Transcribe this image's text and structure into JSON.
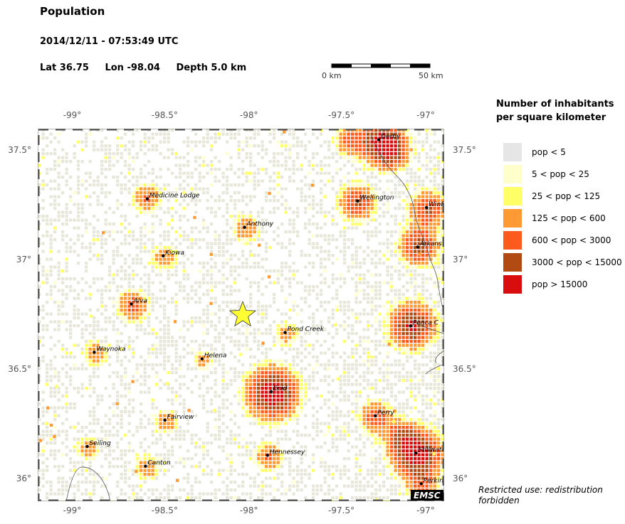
{
  "header": {
    "title": "Population",
    "datetime": "2014/12/11 - 07:53:49 UTC",
    "lat": "Lat 36.75",
    "lon": "Lon -98.04",
    "depth": "Depth  5.0 km"
  },
  "scale_bar": {
    "start_label": "0 km",
    "end_label": "50 km",
    "length_km": 50
  },
  "map": {
    "lon_range": [
      -99.2,
      -96.9
    ],
    "lat_range": [
      35.9,
      37.6
    ],
    "x_ticks": [
      {
        "lon": -99.0,
        "label": "-99°"
      },
      {
        "lon": -98.5,
        "label": "-98.5°"
      },
      {
        "lon": -98.0,
        "label": "-98°"
      },
      {
        "lon": -97.5,
        "label": "-97.5°"
      },
      {
        "lon": -97.0,
        "label": "-97°"
      }
    ],
    "y_ticks": [
      {
        "lat": 37.5,
        "label": "37.5°"
      },
      {
        "lat": 37.0,
        "label": "37°"
      },
      {
        "lat": 36.5,
        "label": "36.5°"
      },
      {
        "lat": 36.0,
        "label": "36°"
      }
    ],
    "epicenter": {
      "lat": 36.75,
      "lon": -98.04,
      "color": "#ffff33"
    },
    "cities": [
      {
        "name": "Derby",
        "lat": 37.55,
        "lon": -97.27
      },
      {
        "name": "Medicine Lodge",
        "lat": 37.28,
        "lon": -98.58
      },
      {
        "name": "Wellington",
        "lat": 37.27,
        "lon": -97.39
      },
      {
        "name": "Winf",
        "lat": 37.24,
        "lon": -97.0
      },
      {
        "name": "Anthony",
        "lat": 37.15,
        "lon": -98.03
      },
      {
        "name": "Kiowa",
        "lat": 37.02,
        "lon": -98.49
      },
      {
        "name": "Arkans",
        "lat": 37.06,
        "lon": -97.05
      },
      {
        "name": "Alva",
        "lat": 36.8,
        "lon": -98.67
      },
      {
        "name": "Pond Creek",
        "lat": 36.67,
        "lon": -97.8
      },
      {
        "name": "Ponca C",
        "lat": 36.7,
        "lon": -97.09
      },
      {
        "name": "Waynoka",
        "lat": 36.58,
        "lon": -98.88
      },
      {
        "name": "Helena",
        "lat": 36.55,
        "lon": -98.27
      },
      {
        "name": "Enid",
        "lat": 36.4,
        "lon": -97.88
      },
      {
        "name": "Perry",
        "lat": 36.29,
        "lon": -97.29
      },
      {
        "name": "Fairview",
        "lat": 36.27,
        "lon": -98.48
      },
      {
        "name": "Seiling",
        "lat": 36.15,
        "lon": -98.92
      },
      {
        "name": "Hennessey",
        "lat": 36.11,
        "lon": -97.9
      },
      {
        "name": "Stillwate",
        "lat": 36.12,
        "lon": -97.06
      },
      {
        "name": "Canton",
        "lat": 36.06,
        "lon": -98.59
      },
      {
        "name": "Perkins",
        "lat": 35.98,
        "lon": -97.03
      }
    ],
    "watermark": "EMSC"
  },
  "legend": {
    "title": "Number of inhabitants per square kilometer",
    "items": [
      {
        "label": "pop < 5",
        "color": "#e6e6e6"
      },
      {
        "label": "5 < pop < 25",
        "color": "#ffffcc"
      },
      {
        "label": "25 < pop < 125",
        "color": "#ffff66"
      },
      {
        "label": "125 < pop < 600",
        "color": "#fd9a33"
      },
      {
        "label": "600 < pop < 3000",
        "color": "#fd5a1e"
      },
      {
        "label": "3000 < pop < 15000",
        "color": "#b24a14"
      },
      {
        "label": "pop > 15000",
        "color": "#d90d0d"
      }
    ]
  },
  "footer": {
    "restricted": "Restricted use: redistribution forbidden"
  }
}
